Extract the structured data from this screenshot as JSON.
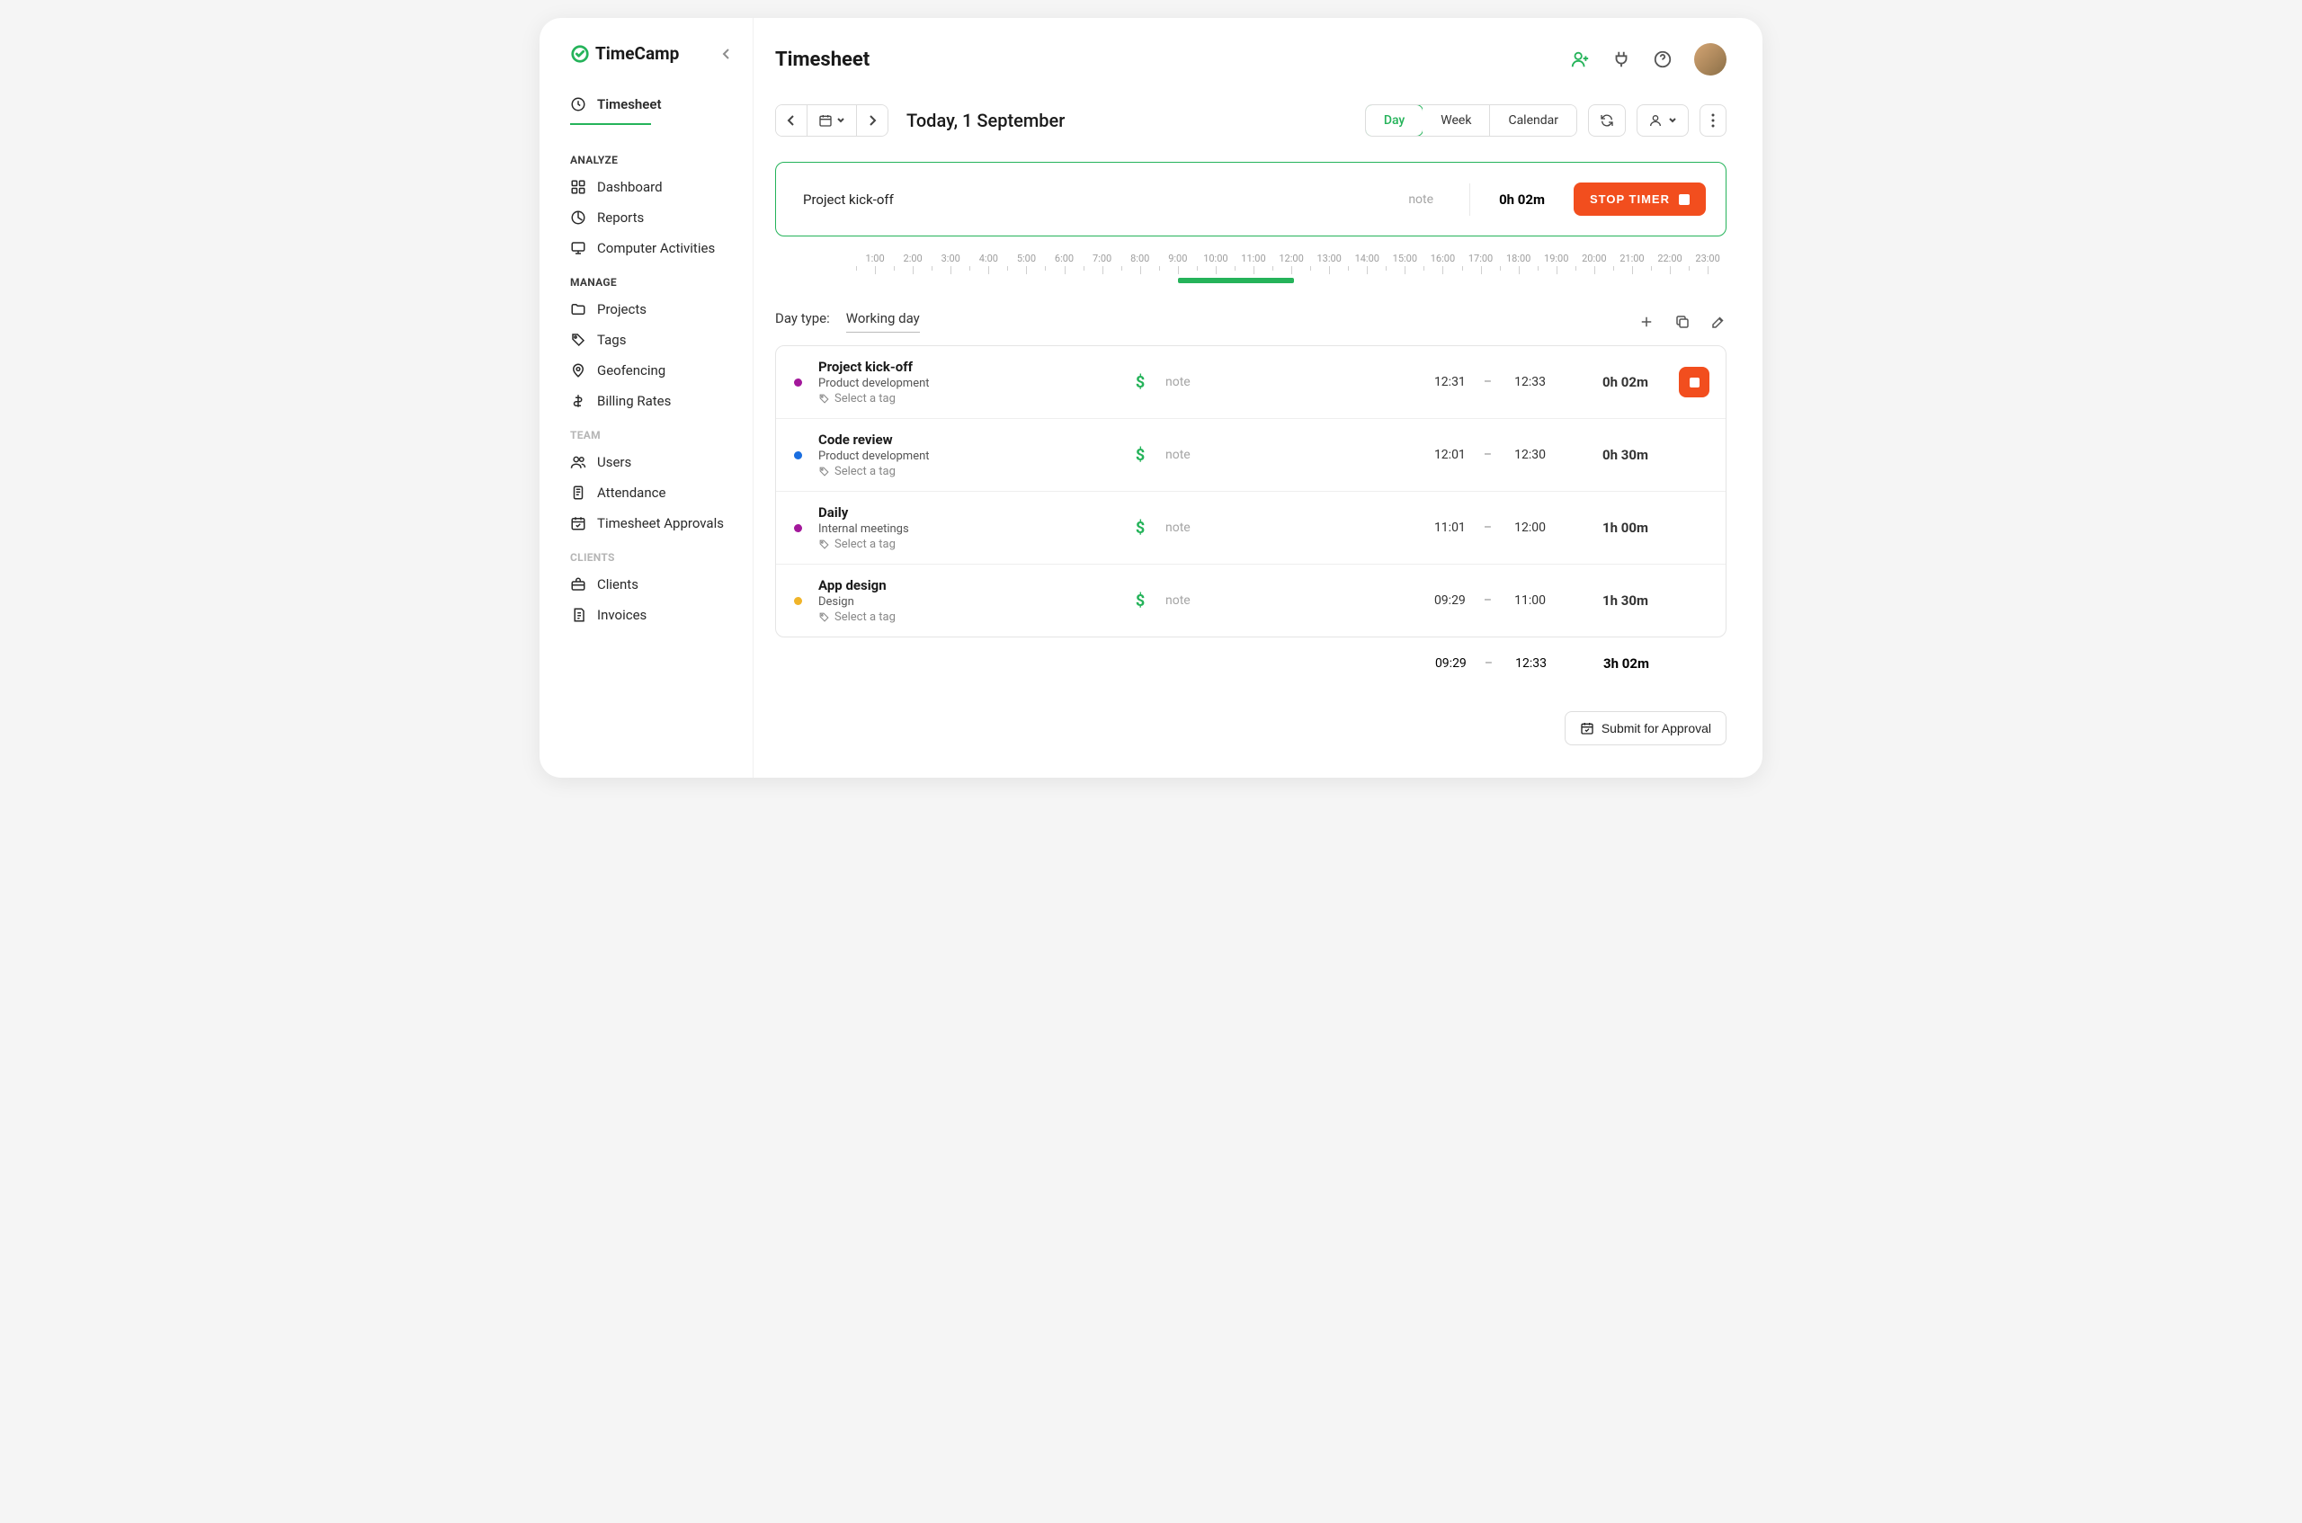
{
  "brand": "TimeCamp",
  "sidebar": {
    "top_item": "Timesheet",
    "sections": [
      {
        "title": "ANALYZE",
        "muted": false,
        "items": [
          "Dashboard",
          "Reports",
          "Computer Activities"
        ]
      },
      {
        "title": "MANAGE",
        "muted": false,
        "items": [
          "Projects",
          "Tags",
          "Geofencing",
          "Billing Rates"
        ]
      },
      {
        "title": "TEAM",
        "muted": true,
        "items": [
          "Users",
          "Attendance",
          "Timesheet Approvals"
        ]
      },
      {
        "title": "CLIENTS",
        "muted": true,
        "items": [
          "Clients",
          "Invoices"
        ]
      }
    ]
  },
  "page_title": "Timesheet",
  "date_label": "Today, 1 September",
  "view_tabs": [
    "Day",
    "Week",
    "Calendar"
  ],
  "view_active": "Day",
  "active_timer": {
    "task": "Project kick-off",
    "note_placeholder": "note",
    "elapsed": "0h 02m",
    "stop_label": "STOP TIMER"
  },
  "ruler": {
    "hours": [
      "1:00",
      "2:00",
      "3:00",
      "4:00",
      "5:00",
      "6:00",
      "7:00",
      "8:00",
      "9:00",
      "10:00",
      "11:00",
      "12:00",
      "13:00",
      "14:00",
      "15:00",
      "16:00",
      "17:00",
      "18:00",
      "19:00",
      "20:00",
      "21:00",
      "22:00",
      "23:00"
    ],
    "bar_start_pct": 37.0,
    "bar_width_pct": 13.3,
    "bar_color": "#25b35a"
  },
  "daytype_label": "Day type:",
  "daytype_value": "Working day",
  "tag_placeholder": "Select a tag",
  "note_placeholder": "note",
  "entries": [
    {
      "title": "Project kick-off",
      "project": "Product development",
      "dot": "#a3189b",
      "start": "12:31",
      "end": "12:33",
      "duration": "0h 02m",
      "running": true
    },
    {
      "title": "Code review",
      "project": "Product development",
      "dot": "#1a6ee0",
      "start": "12:01",
      "end": "12:30",
      "duration": "0h 30m",
      "running": false
    },
    {
      "title": "Daily",
      "project": "Internal meetings",
      "dot": "#a3189b",
      "start": "11:01",
      "end": "12:00",
      "duration": "1h 00m",
      "running": false
    },
    {
      "title": "App design",
      "project": "Design",
      "dot": "#f0b429",
      "start": "09:29",
      "end": "11:00",
      "duration": "1h 30m",
      "running": false
    }
  ],
  "totals": {
    "start": "09:29",
    "end": "12:33",
    "duration": "3h 02m"
  },
  "submit_label": "Submit for Approval",
  "colors": {
    "accent": "#25b35a",
    "danger": "#f24e1e"
  }
}
